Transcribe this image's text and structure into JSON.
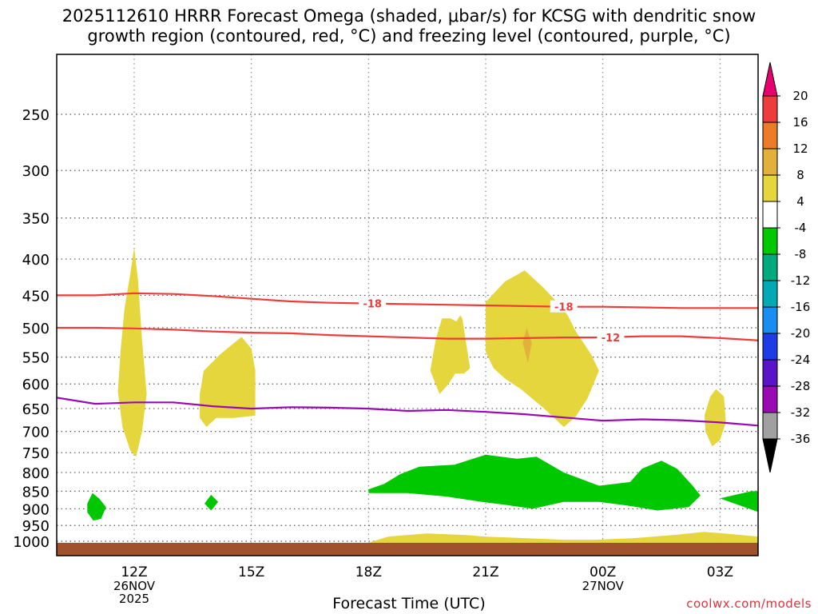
{
  "chart_data": {
    "type": "heatmap",
    "title_line1": "2025112610 HRRR Forecast Omega (shaded, μbar/s) for KCSG with dendritic snow",
    "title_line2": "growth region (contoured, red, °C) and freezing level (contoured, purple, °C)",
    "xlabel": "Forecast Time (UTC)",
    "credit": "coolwx.com/models",
    "x_ticks": [
      {
        "hour": 12,
        "label": "12Z",
        "date": "26NOV",
        "year": "2025"
      },
      {
        "hour": 15,
        "label": "15Z",
        "date": "",
        "year": ""
      },
      {
        "hour": 18,
        "label": "18Z",
        "date": "",
        "year": ""
      },
      {
        "hour": 21,
        "label": "21Z",
        "date": "",
        "year": ""
      },
      {
        "hour": 24,
        "label": "00Z",
        "date": "27NOV",
        "year": ""
      },
      {
        "hour": 27,
        "label": "03Z",
        "date": "",
        "year": ""
      }
    ],
    "xlim": [
      10,
      28
    ],
    "y_ticks": [
      250,
      300,
      350,
      400,
      450,
      500,
      550,
      600,
      650,
      700,
      750,
      800,
      850,
      900,
      950,
      1000
    ],
    "ylim_hpa": [
      200,
      1020
    ],
    "y_scale": "log-pressure",
    "grid": true,
    "colorbar": {
      "levels": [
        "20",
        "16",
        "12",
        "8",
        "4",
        "-4",
        "-8",
        "-12",
        "-16",
        "-20",
        "-24",
        "-28",
        "-32",
        "-36"
      ],
      "colors": [
        "#e8006e",
        "#ee3c3c",
        "#ec7c28",
        "#e2b13c",
        "#e4d63c",
        "#ffffff",
        "#00c800",
        "#00aa7c",
        "#00aab4",
        "#1a8ef0",
        "#1e3ce6",
        "#5a14c8",
        "#9a0ab4",
        "#a0a0a0",
        "#000000"
      ]
    },
    "shaded_regions": [
      {
        "label": "4",
        "color": "#e4d63c",
        "points": [
          [
            11.58,
            615
          ],
          [
            11.65,
            540
          ],
          [
            11.75,
            470
          ],
          [
            11.9,
            420
          ],
          [
            12.0,
            385
          ],
          [
            12.1,
            430
          ],
          [
            12.2,
            520
          ],
          [
            12.32,
            620
          ],
          [
            12.2,
            700
          ],
          [
            12.05,
            760
          ],
          [
            11.9,
            745
          ],
          [
            11.7,
            690
          ]
        ]
      },
      {
        "label": "4",
        "color": "#e4d63c",
        "points": [
          [
            13.68,
            620
          ],
          [
            13.78,
            575
          ],
          [
            14.2,
            545
          ],
          [
            14.75,
            515
          ],
          [
            15.0,
            535
          ],
          [
            15.1,
            575
          ],
          [
            15.1,
            665
          ],
          [
            14.55,
            670
          ],
          [
            14.1,
            670
          ],
          [
            13.85,
            690
          ],
          [
            13.68,
            670
          ]
        ]
      },
      {
        "label": "4",
        "color": "#e4d63c",
        "points": [
          [
            19.58,
            575
          ],
          [
            19.72,
            520
          ],
          [
            19.88,
            485
          ],
          [
            20.1,
            485
          ],
          [
            20.25,
            490
          ],
          [
            20.35,
            480
          ],
          [
            20.4,
            485
          ],
          [
            20.6,
            570
          ],
          [
            20.45,
            580
          ],
          [
            20.22,
            580
          ],
          [
            20.05,
            600
          ],
          [
            19.82,
            620
          ]
        ]
      },
      {
        "label": "4",
        "color": "#e4d63c",
        "points": [
          [
            21.0,
            460
          ],
          [
            21.5,
            430
          ],
          [
            22.0,
            415
          ],
          [
            22.5,
            440
          ],
          [
            22.9,
            465
          ],
          [
            23.1,
            480
          ],
          [
            23.3,
            505
          ],
          [
            23.7,
            545
          ],
          [
            23.9,
            575
          ],
          [
            23.6,
            630
          ],
          [
            23.3,
            668
          ],
          [
            23.0,
            690
          ],
          [
            22.5,
            650
          ],
          [
            21.9,
            610
          ],
          [
            21.5,
            590
          ],
          [
            21.2,
            570
          ],
          [
            21.0,
            540
          ]
        ]
      },
      {
        "label": "8",
        "color": "#e2b13c",
        "points": [
          [
            21.95,
            525
          ],
          [
            22.05,
            500
          ],
          [
            22.18,
            525
          ],
          [
            22.08,
            560
          ]
        ]
      },
      {
        "label": "4",
        "color": "#e4d63c",
        "points": [
          [
            26.6,
            665
          ],
          [
            26.75,
            625
          ],
          [
            26.9,
            610
          ],
          [
            27.1,
            625
          ],
          [
            27.15,
            680
          ],
          [
            27.0,
            720
          ],
          [
            26.8,
            735
          ],
          [
            26.63,
            700
          ]
        ]
      },
      {
        "label": "4",
        "color": "#e4d63c",
        "points": [
          [
            18.0,
            1005
          ],
          [
            18.5,
            985
          ],
          [
            19.5,
            975
          ],
          [
            20.5,
            980
          ],
          [
            21.0,
            985
          ],
          [
            22.0,
            990
          ],
          [
            23.0,
            995
          ],
          [
            23.8,
            995
          ],
          [
            24.8,
            990
          ],
          [
            25.8,
            980
          ],
          [
            26.6,
            970
          ],
          [
            27.1,
            975
          ],
          [
            28.0,
            985
          ],
          [
            28.0,
            1005
          ]
        ]
      },
      {
        "label": "-4",
        "color": "#00c800",
        "points": [
          [
            18.0,
            845
          ],
          [
            18.4,
            830
          ],
          [
            18.8,
            805
          ],
          [
            19.3,
            785
          ],
          [
            20.2,
            780
          ],
          [
            21.0,
            755
          ],
          [
            21.8,
            765
          ],
          [
            22.3,
            760
          ],
          [
            23.0,
            800
          ],
          [
            23.9,
            835
          ],
          [
            24.7,
            825
          ],
          [
            25.0,
            790
          ],
          [
            25.5,
            770
          ],
          [
            25.9,
            790
          ],
          [
            26.3,
            835
          ],
          [
            26.5,
            862
          ],
          [
            26.2,
            895
          ],
          [
            25.4,
            905
          ],
          [
            24.6,
            890
          ],
          [
            23.9,
            880
          ],
          [
            23.0,
            880
          ],
          [
            22.2,
            900
          ],
          [
            21.6,
            890
          ],
          [
            20.9,
            880
          ],
          [
            20.0,
            865
          ],
          [
            19.0,
            855
          ],
          [
            18.0,
            855
          ]
        ]
      },
      {
        "label": "-4",
        "color": "#00c800",
        "points": [
          [
            10.8,
            885
          ],
          [
            10.93,
            855
          ],
          [
            11.1,
            870
          ],
          [
            11.28,
            895
          ],
          [
            11.15,
            930
          ],
          [
            10.95,
            935
          ],
          [
            10.8,
            910
          ]
        ]
      },
      {
        "label": "-4",
        "color": "#00c800",
        "points": [
          [
            13.8,
            885
          ],
          [
            13.97,
            860
          ],
          [
            14.15,
            880
          ],
          [
            13.97,
            905
          ]
        ]
      },
      {
        "label": "-4",
        "color": "#00c800",
        "points": [
          [
            27.0,
            870
          ],
          [
            27.8,
            850
          ],
          [
            28.0,
            850
          ],
          [
            28.0,
            910
          ],
          [
            27.5,
            890
          ]
        ]
      }
    ],
    "contours": [
      {
        "label": "-18",
        "color": "#ee3c3c",
        "label_positions": [
          18.1,
          23.0
        ],
        "points": [
          [
            10,
            450
          ],
          [
            11,
            450
          ],
          [
            12,
            447
          ],
          [
            13,
            448
          ],
          [
            14,
            451
          ],
          [
            15,
            455
          ],
          [
            16,
            459
          ],
          [
            17,
            461
          ],
          [
            18,
            462
          ],
          [
            19,
            463
          ],
          [
            20,
            464
          ],
          [
            21,
            465
          ],
          [
            22,
            466
          ],
          [
            23,
            467
          ],
          [
            24,
            467
          ],
          [
            25,
            468
          ],
          [
            26,
            469
          ],
          [
            27,
            469
          ],
          [
            28,
            469
          ]
        ]
      },
      {
        "label": "-12",
        "color": "#ee3c3c",
        "label_positions": [
          24.2
        ],
        "points": [
          [
            10,
            500
          ],
          [
            11,
            500
          ],
          [
            12,
            501
          ],
          [
            13,
            503
          ],
          [
            14,
            506
          ],
          [
            15,
            508
          ],
          [
            16,
            509
          ],
          [
            17,
            512
          ],
          [
            18,
            514
          ],
          [
            19,
            516
          ],
          [
            20,
            518
          ],
          [
            21,
            518
          ],
          [
            22,
            517
          ],
          [
            23,
            516
          ],
          [
            24,
            516
          ],
          [
            25,
            514
          ],
          [
            26,
            514
          ],
          [
            27,
            517
          ],
          [
            28,
            521
          ]
        ]
      },
      {
        "label": "freezing level",
        "color": "#9a0ab4",
        "label_positions": [],
        "points": [
          [
            10,
            627
          ],
          [
            11,
            640
          ],
          [
            12,
            637
          ],
          [
            13,
            637
          ],
          [
            14,
            645
          ],
          [
            15,
            650
          ],
          [
            16,
            647
          ],
          [
            17,
            648
          ],
          [
            18,
            650
          ],
          [
            19,
            655
          ],
          [
            20,
            653
          ],
          [
            21,
            657
          ],
          [
            22,
            662
          ],
          [
            23,
            669
          ],
          [
            24,
            676
          ],
          [
            25,
            673
          ],
          [
            26,
            675
          ],
          [
            27,
            680
          ],
          [
            28,
            687
          ]
        ]
      }
    ],
    "ground": {
      "color": "#a0522d",
      "from_hpa": 1005
    }
  }
}
